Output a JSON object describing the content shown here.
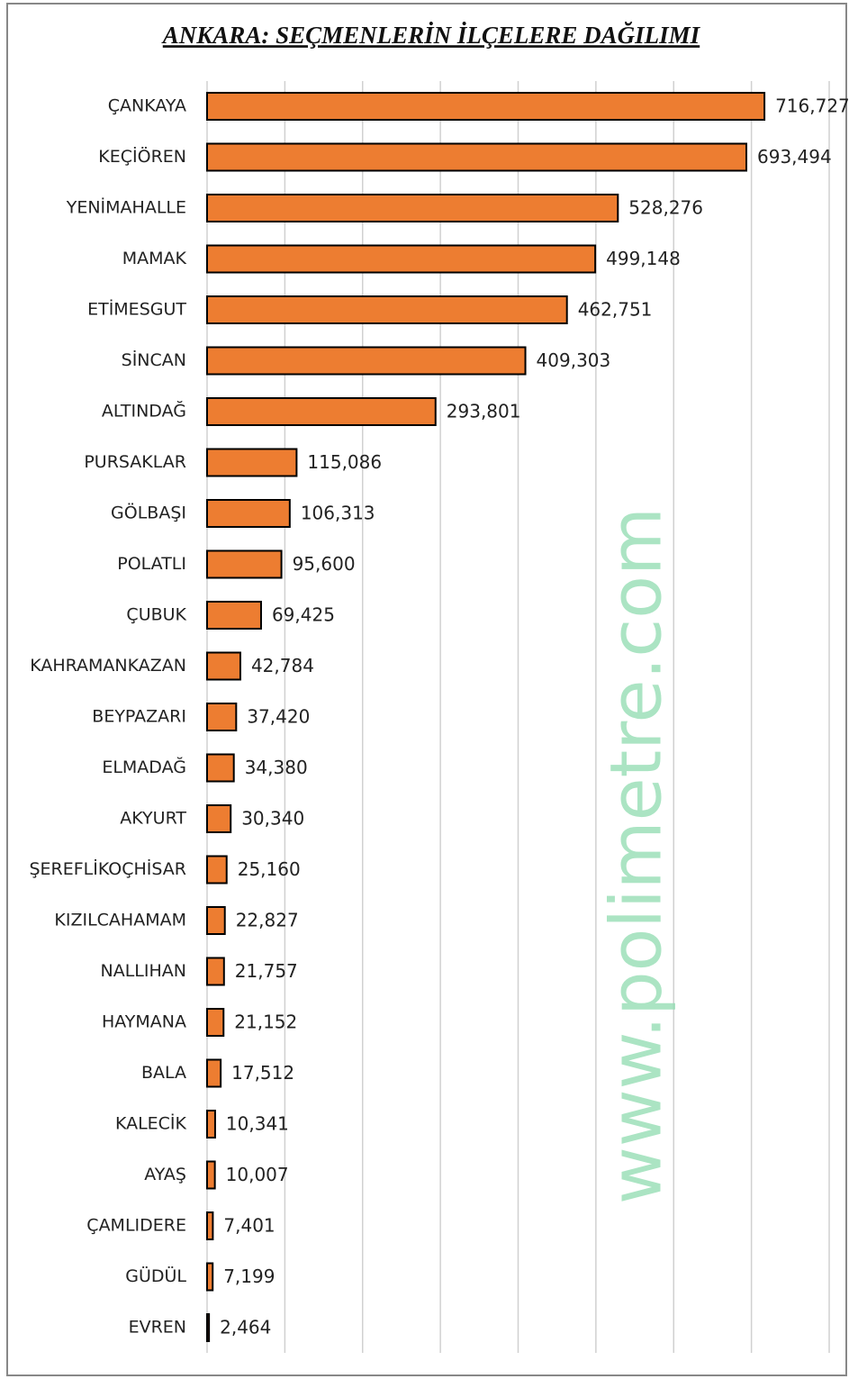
{
  "chart_data": {
    "type": "bar",
    "orientation": "horizontal",
    "title": "ANKARA: SEÇMENLERİN İLÇELERE DAĞILIMI",
    "watermark": "www.polimetre.com",
    "categories": [
      "ÇANKAYA",
      "KEÇİÖREN",
      "YENİMAHALLE",
      "MAMAK",
      "ETİMESGUT",
      "SİNCAN",
      "ALTINDAĞ",
      "PURSAKLAR",
      "GÖLBAŞI",
      "POLATLI",
      "ÇUBUK",
      "KAHRAMANKAZAN",
      "BEYPAZARI",
      "ELMADAĞ",
      "AKYURT",
      "ŞEREFLİKOÇHİSAR",
      "KIZILCAHAMAM",
      "NALLIHAN",
      "HAYMANA",
      "BALA",
      "KALECİK",
      "AYAŞ",
      "ÇAMLIDERE",
      "GÜDÜL",
      "EVREN"
    ],
    "values": [
      716727,
      693494,
      528276,
      499148,
      462751,
      409303,
      293801,
      115086,
      106313,
      95600,
      69425,
      42784,
      37420,
      34380,
      30340,
      25160,
      22827,
      21757,
      21152,
      17512,
      10341,
      10007,
      7401,
      7199,
      2464
    ],
    "value_labels": [
      "716,727",
      "693,494",
      "528,276",
      "499,148",
      "462,751",
      "409,303",
      "293,801",
      "115,086",
      "106,313",
      "95,600",
      "69,425",
      "42,784",
      "37,420",
      "34,380",
      "30,340",
      "25,160",
      "22,827",
      "21,757",
      "21,152",
      "17,512",
      "10,341",
      "10,007",
      "7,401",
      "7,199",
      "2,464"
    ],
    "color": "#ed7d31",
    "xlim": [
      0,
      800000
    ],
    "xticks": [
      0,
      100000,
      200000,
      300000,
      400000,
      500000,
      600000,
      700000,
      800000
    ],
    "grid": true
  }
}
